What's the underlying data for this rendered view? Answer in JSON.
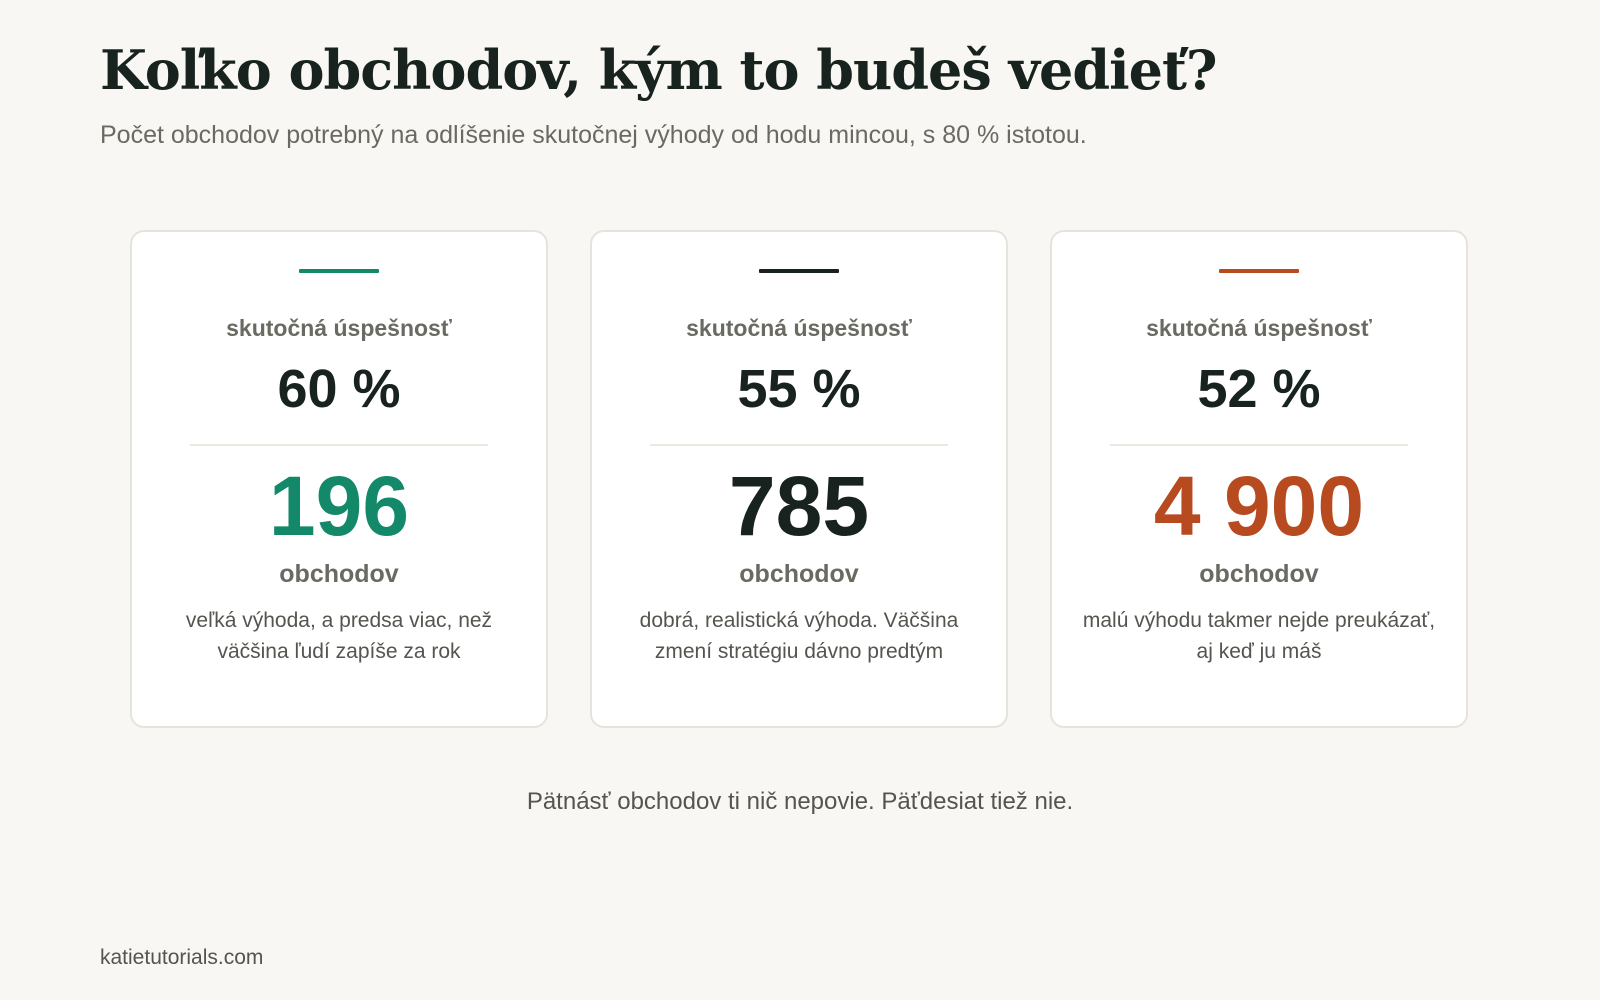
{
  "header": {
    "title": "Koľko obchodov, kým to budeš vedieť?",
    "subtitle": "Počet obchodov potrebný na odlíšenie skutočnej výhody od hodu mincou, s 80 % istotou."
  },
  "cards": [
    {
      "accent_color": "#14896a",
      "label": "skutočná úspešnosť",
      "rate": "60 %",
      "count": "196",
      "count_color": "#14896a",
      "unit": "obchodov",
      "description": "veľká výhoda, a predsa viac, než väčšina ľudí zapíše za rok"
    },
    {
      "accent_color": "#18231f",
      "label": "skutočná úspešnosť",
      "rate": "55 %",
      "count": "785",
      "count_color": "#18231f",
      "unit": "obchodov",
      "description": "dobrá, realistická výhoda. Väčšina zmení stratégiu dávno predtým"
    },
    {
      "accent_color": "#b84a20",
      "label": "skutočná úspešnosť",
      "rate": "52 %",
      "count": "4 900",
      "count_color": "#b84a20",
      "unit": "obchodov",
      "description": "malú výhodu takmer nejde preukázať, aj keď ju máš"
    }
  ],
  "footnote": "Pätnásť obchodov ti nič nepovie. Päťdesiat tiež nie.",
  "source": "katietutorials.com"
}
